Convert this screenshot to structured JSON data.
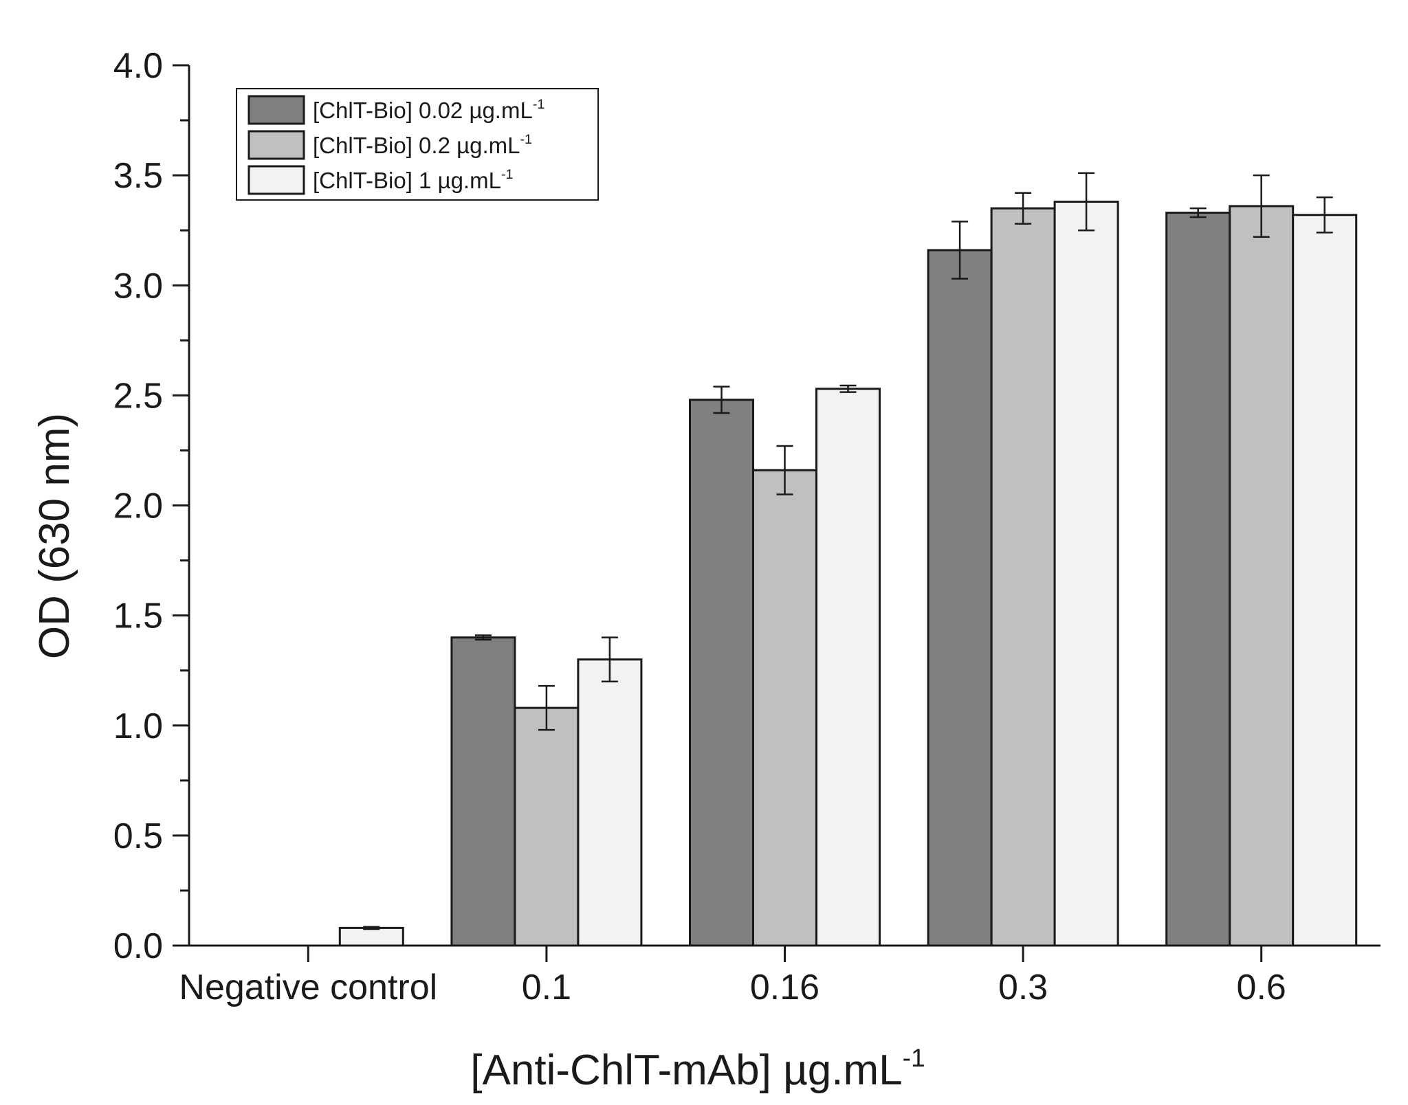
{
  "chart_data": {
    "type": "bar",
    "title": "",
    "ylabel": "OD (630 nm)",
    "xlabel": {
      "main": "[Anti-ChlT-mAb] µg.mL",
      "sup": "-1"
    },
    "ylim": [
      0,
      4.0
    ],
    "yticks": [
      "0.0",
      "0.5",
      "1.0",
      "1.5",
      "2.0",
      "2.5",
      "3.0",
      "3.5",
      "4.0"
    ],
    "categories": [
      "Negative control",
      "0.1",
      "0.16",
      "0.3",
      "0.6"
    ],
    "series": [
      {
        "name": "[ChlT-Bio] 0.02 µg.mL",
        "sup": "-1",
        "color": "#808080",
        "values": [
          0.0,
          1.4,
          2.48,
          3.16,
          3.33
        ],
        "errors": [
          0.0,
          0.01,
          0.06,
          0.13,
          0.02
        ]
      },
      {
        "name": "[ChlT-Bio] 0.2 µg.mL",
        "sup": "-1",
        "color": "#c0c0c0",
        "values": [
          0.0,
          1.08,
          2.16,
          3.35,
          3.36
        ],
        "errors": [
          0.0,
          0.1,
          0.11,
          0.07,
          0.14
        ]
      },
      {
        "name": "[ChlT-Bio] 1 µg.mL",
        "sup": "-1",
        "color": "#f2f2f2",
        "values": [
          0.08,
          1.3,
          2.53,
          3.38,
          3.32
        ],
        "errors": [
          0.005,
          0.1,
          0.015,
          0.13,
          0.08
        ]
      }
    ],
    "legend_position": "top-left",
    "grid": false
  }
}
